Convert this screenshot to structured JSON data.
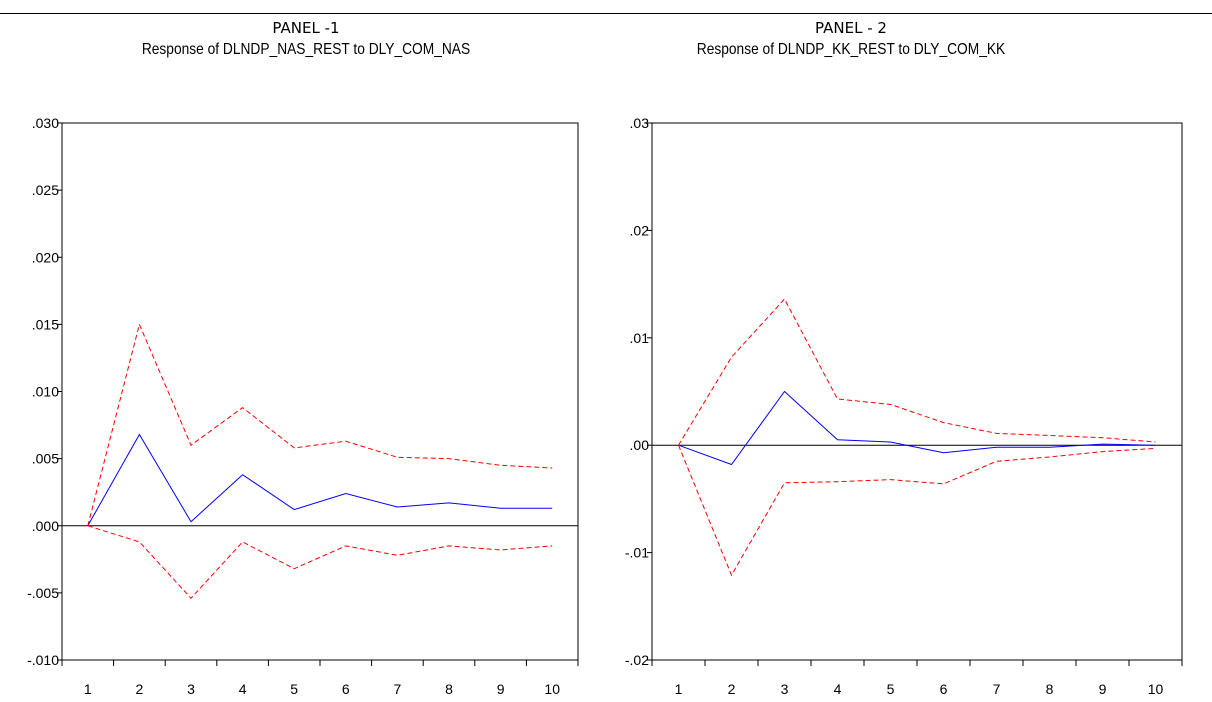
{
  "panels": [
    {
      "label": "PANEL -1",
      "title": "Response of DLNDP_NAS_REST to DLY_COM_NAS"
    },
    {
      "label": "PANEL - 2",
      "title": "Response of DLNDP_KK_REST to DLY_COM_KK"
    }
  ],
  "chart_data": [
    {
      "type": "line",
      "title": "Response of DLNDP_NAS_REST to DLY_COM_NAS",
      "x": [
        1,
        2,
        3,
        4,
        5,
        6,
        7,
        8,
        9,
        10
      ],
      "xticklabels": [
        "1",
        "2",
        "3",
        "4",
        "5",
        "6",
        "7",
        "8",
        "9",
        "10"
      ],
      "ylim": [
        -0.01,
        0.03
      ],
      "yticks": [
        -0.01,
        -0.005,
        0.0,
        0.005,
        0.01,
        0.015,
        0.02,
        0.025,
        0.03
      ],
      "yticklabels": [
        "-.010",
        "-.005",
        ".000",
        ".005",
        ".010",
        ".015",
        ".020",
        ".025",
        ".030"
      ],
      "zero_line": true,
      "grid": false,
      "series": [
        {
          "color": "#0000ff",
          "style": "solid",
          "values": [
            0.0,
            0.0068,
            0.0003,
            0.0038,
            0.0012,
            0.0024,
            0.0014,
            0.0017,
            0.0013,
            0.0013
          ]
        },
        {
          "color": "#ff0000",
          "style": "dashed",
          "values": [
            0.0,
            0.015,
            0.006,
            0.0088,
            0.0058,
            0.0063,
            0.0051,
            0.005,
            0.0045,
            0.0043
          ]
        },
        {
          "color": "#ff0000",
          "style": "dashed",
          "values": [
            0.0,
            -0.0012,
            -0.0054,
            -0.0012,
            -0.0032,
            -0.0015,
            -0.0022,
            -0.0015,
            -0.0018,
            -0.0015
          ]
        }
      ]
    },
    {
      "type": "line",
      "title": "Response of DLNDP_KK_REST to DLY_COM_KK",
      "x": [
        1,
        2,
        3,
        4,
        5,
        6,
        7,
        8,
        9,
        10
      ],
      "xticklabels": [
        "1",
        "2",
        "3",
        "4",
        "5",
        "6",
        "7",
        "8",
        "9",
        "10"
      ],
      "ylim": [
        -0.02,
        0.03
      ],
      "yticks": [
        -0.02,
        -0.01,
        0.0,
        0.01,
        0.02,
        0.03
      ],
      "yticklabels": [
        "-.02",
        "-.01",
        ".00",
        ".01",
        ".02",
        ".03"
      ],
      "zero_line": true,
      "grid": false,
      "series": [
        {
          "color": "#0000ff",
          "style": "solid",
          "values": [
            0.0,
            -0.0018,
            0.005,
            0.0005,
            0.0003,
            -0.0007,
            -0.0002,
            -0.0002,
            0.0001,
            0.0
          ]
        },
        {
          "color": "#ff0000",
          "style": "dashed",
          "values": [
            0.0,
            0.0082,
            0.0136,
            0.0043,
            0.0038,
            0.0021,
            0.0011,
            0.0009,
            0.0007,
            0.0003
          ]
        },
        {
          "color": "#ff0000",
          "style": "dashed",
          "values": [
            0.0,
            -0.0121,
            -0.0035,
            -0.0034,
            -0.0032,
            -0.0036,
            -0.0015,
            -0.0011,
            -0.0006,
            -0.0003
          ]
        }
      ]
    }
  ]
}
